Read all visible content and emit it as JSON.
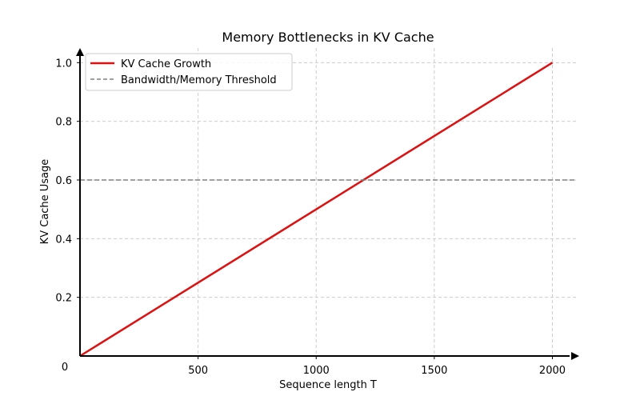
{
  "chart_data": {
    "type": "line",
    "title": "Memory Bottlenecks in KV Cache",
    "xlabel": "Sequence length T",
    "ylabel": "KV Cache Usage",
    "xlim": [
      0,
      2100
    ],
    "ylim": [
      0,
      1.05
    ],
    "x_ticks": [
      500,
      1000,
      1500,
      2000
    ],
    "x_tick_labels": [
      "500",
      "1000",
      "1500",
      "2000"
    ],
    "y_ticks": [
      0.2,
      0.4,
      0.6,
      0.8,
      1.0
    ],
    "y_tick_labels": [
      "0.2",
      "0.4",
      "0.6",
      "0.8",
      "1.0"
    ],
    "origin_label": "0",
    "grid": true,
    "legend_position": "top-left",
    "series": [
      {
        "name": "KV Cache Growth",
        "color": "#dd1111",
        "style": "solid",
        "x": [
          0,
          2000
        ],
        "y": [
          0,
          1.0
        ]
      },
      {
        "name": "Bandwidth/Memory Threshold",
        "color": "#808080",
        "style": "dashed",
        "x": [
          0,
          2100
        ],
        "y": [
          0.6,
          0.6
        ]
      }
    ]
  }
}
